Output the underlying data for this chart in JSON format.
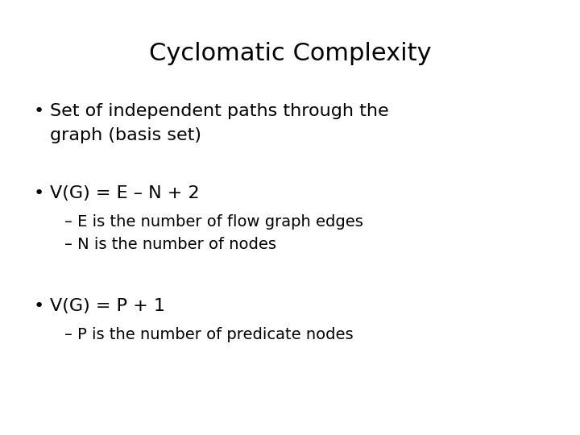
{
  "title": "Cyclomatic Complexity",
  "title_fontsize": 22,
  "background_color": "#ffffff",
  "text_color": "#000000",
  "bullet1_line1": "Set of independent paths through the",
  "bullet1_line2": "graph (basis set)",
  "bullet2": "V(G) = E – N + 2",
  "sub_bullet2a": "– E is the number of flow graph edges",
  "sub_bullet2b": "– N is the number of nodes",
  "bullet3": "V(G) = P + 1",
  "sub_bullet3a": "– P is the number of predicate nodes",
  "bullet_fontsize": 16,
  "sub_bullet_fontsize": 14,
  "font_family": "Arial Narrow",
  "font_family_fallback": "DejaVu Sans Condensed"
}
